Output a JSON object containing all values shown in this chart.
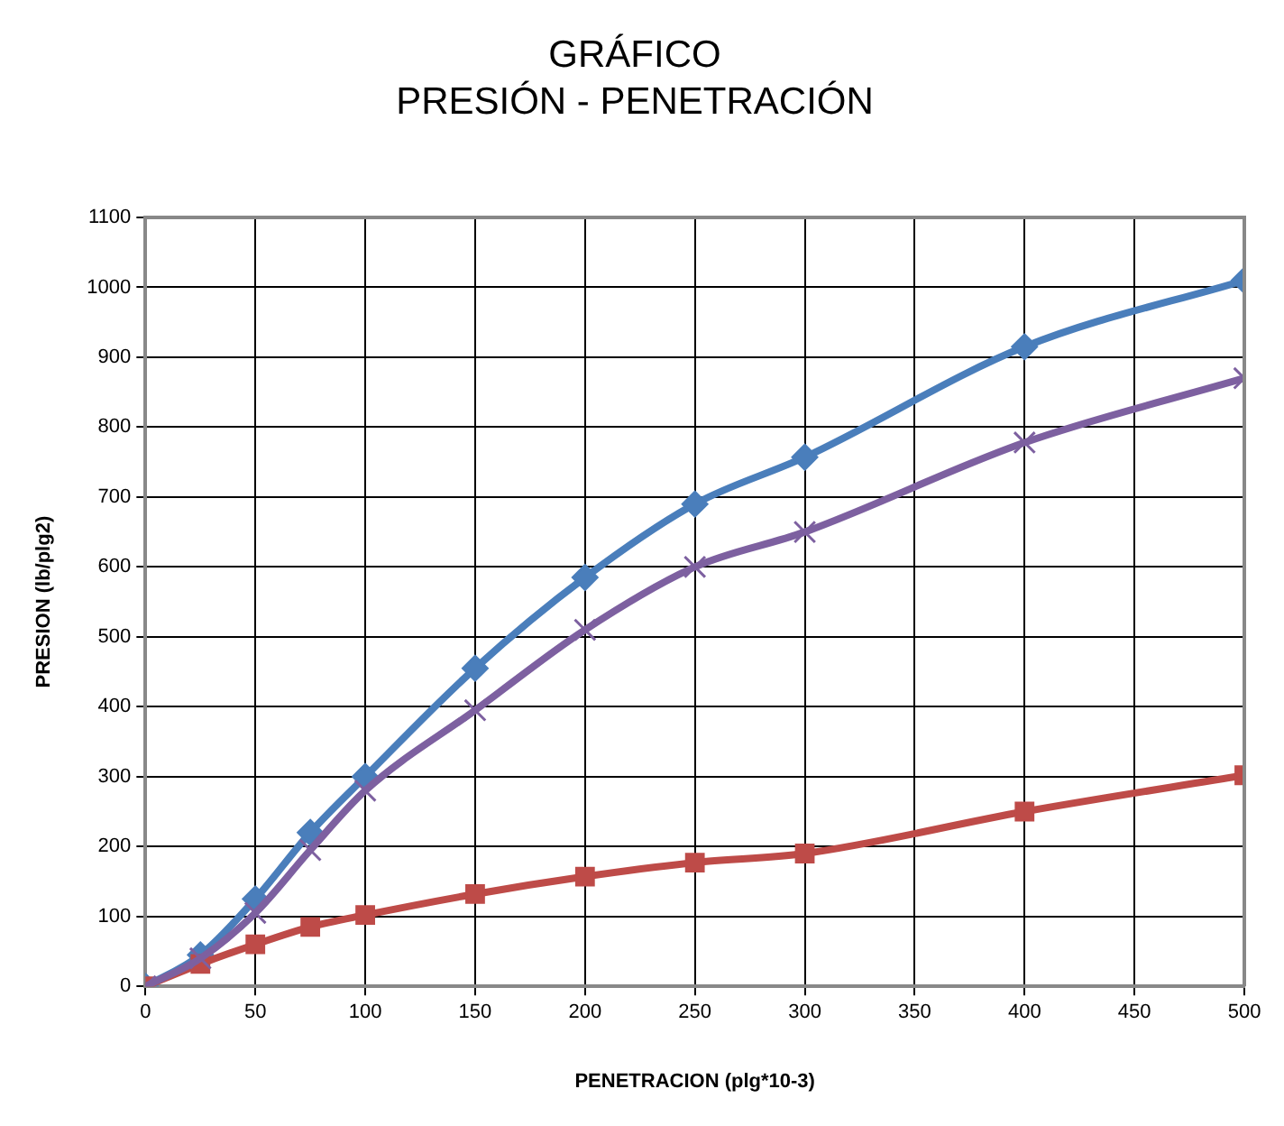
{
  "chart_data": {
    "type": "line",
    "title": [
      "GRÁFICO",
      "PRESIÓN - PENETRACIÓN"
    ],
    "xlabel": "PENETRACION (plg*10-3)",
    "ylabel": "PRESION (lb/plg2)",
    "x": [
      0,
      25,
      50,
      75,
      100,
      150,
      200,
      250,
      300,
      400,
      500
    ],
    "series": [
      {
        "color": "#4a7ebb",
        "marker": "diamond",
        "values": [
          0,
          45,
          125,
          220,
          300,
          455,
          585,
          690,
          757,
          915,
          1010
        ]
      },
      {
        "color": "#be4b48",
        "marker": "square",
        "values": [
          0,
          32,
          60,
          85,
          102,
          132,
          157,
          177,
          190,
          250,
          302
        ]
      },
      {
        "color": "#7d60a0",
        "marker": "cross",
        "values": [
          0,
          40,
          105,
          195,
          280,
          395,
          510,
          600,
          650,
          778,
          870
        ]
      }
    ],
    "xlim": [
      0,
      500
    ],
    "xticks": [
      0,
      50,
      100,
      150,
      200,
      250,
      300,
      350,
      400,
      450,
      500
    ],
    "ylim": [
      0,
      1100
    ],
    "yticks": [
      0,
      100,
      200,
      300,
      400,
      500,
      600,
      700,
      800,
      900,
      1000,
      1100
    ],
    "grid": true,
    "legend": false
  }
}
